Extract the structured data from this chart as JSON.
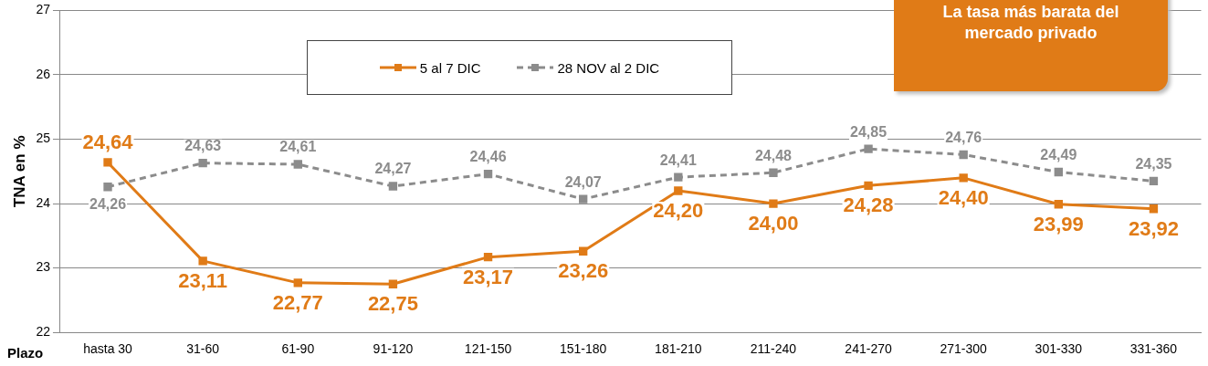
{
  "chart_data": {
    "type": "line",
    "xlabel": "Plazo",
    "ylabel": "TNA en %",
    "annotations": [
      "La tasa más barata del mercado privado"
    ],
    "categories": [
      "hasta 30",
      "31-60",
      "61-90",
      "91-120",
      "121-150",
      "151-180",
      "181-210",
      "211-240",
      "241-270",
      "271-300",
      "301-330",
      "331-360"
    ],
    "series": [
      {
        "name": "5 al 7 DIC",
        "color": "#e07b17",
        "line_style": "solid",
        "values": [
          24.64,
          23.11,
          22.77,
          22.75,
          23.17,
          23.26,
          24.2,
          24.0,
          24.28,
          24.4,
          23.99,
          23.92
        ],
        "value_labels": [
          "24,64",
          "23,11",
          "22,77",
          "22,75",
          "23,17",
          "23,26",
          "24,20",
          "24,00",
          "24,28",
          "24,40",
          "23,99",
          "23,92"
        ]
      },
      {
        "name": "28 NOV al 2 DIC",
        "color": "#8c8c8c",
        "line_style": "dashed",
        "values": [
          24.26,
          24.63,
          24.61,
          24.27,
          24.46,
          24.07,
          24.41,
          24.48,
          24.85,
          24.76,
          24.49,
          24.35
        ],
        "value_labels": [
          "24,26",
          "24,63",
          "24,61",
          "24,27",
          "24,46",
          "24,07",
          "24,41",
          "24,48",
          "24,85",
          "24,76",
          "24,49",
          "24,35"
        ]
      }
    ],
    "ylim": [
      22,
      27
    ],
    "yticks": [
      22,
      23,
      24,
      25,
      26,
      27
    ],
    "grid": "y",
    "legend": "top",
    "marker": "square"
  }
}
